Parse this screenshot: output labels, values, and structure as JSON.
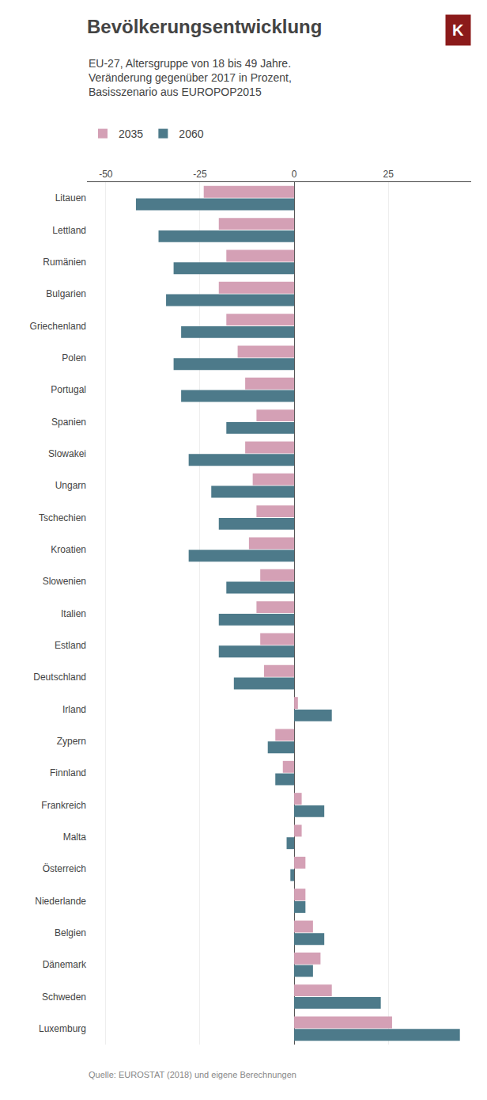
{
  "chart_data": {
    "type": "bar",
    "orientation": "horizontal",
    "title": "Bevölkerungsentwicklung",
    "subtitle": [
      "EU-27, Altersgruppe von 18 bis 49 Jahre.",
      "Veränderung gegenüber 2017 in Prozent,",
      "Basisszenario aus EUROPOP2015"
    ],
    "categories": [
      "Litauen",
      "Lettland",
      "Rumänien",
      "Bulgarien",
      "Griechenland",
      "Polen",
      "Portugal",
      "Spanien",
      "Slowakei",
      "Ungarn",
      "Tschechien",
      "Kroatien",
      "Slowenien",
      "Italien",
      "Estland",
      "Deutschland",
      "Irland",
      "Zypern",
      "Finnland",
      "Frankreich",
      "Malta",
      "Österreich",
      "Niederlande",
      "Belgien",
      "Dänemark",
      "Schweden",
      "Luxemburg"
    ],
    "series": [
      {
        "name": "2035",
        "color": "#d4a0b5",
        "values": [
          -24,
          -20,
          -18,
          -20,
          -18,
          -15,
          -13,
          -10,
          -13,
          -11,
          -10,
          -12,
          -9,
          -10,
          -9,
          -8,
          1,
          -5,
          -3,
          2,
          2,
          3,
          3,
          5,
          7,
          10,
          26
        ]
      },
      {
        "name": "2060",
        "color": "#4d7a8a",
        "values": [
          -42,
          -36,
          -32,
          -34,
          -30,
          -32,
          -30,
          -18,
          -28,
          -22,
          -20,
          -28,
          -18,
          -20,
          -20,
          -16,
          10,
          -7,
          -5,
          8,
          -2,
          -1,
          3,
          8,
          5,
          23,
          44
        ]
      }
    ],
    "xlim": [
      -55,
      47
    ],
    "xticks": [
      -50,
      -25,
      0,
      25
    ],
    "grid": true,
    "legend": "top",
    "annotations": [
      {
        "text": "K",
        "color": "#8b1a1a"
      },
      {
        "text": "Quelle: EUROSTAT (2018) und eigene Berechnungen"
      }
    ]
  }
}
